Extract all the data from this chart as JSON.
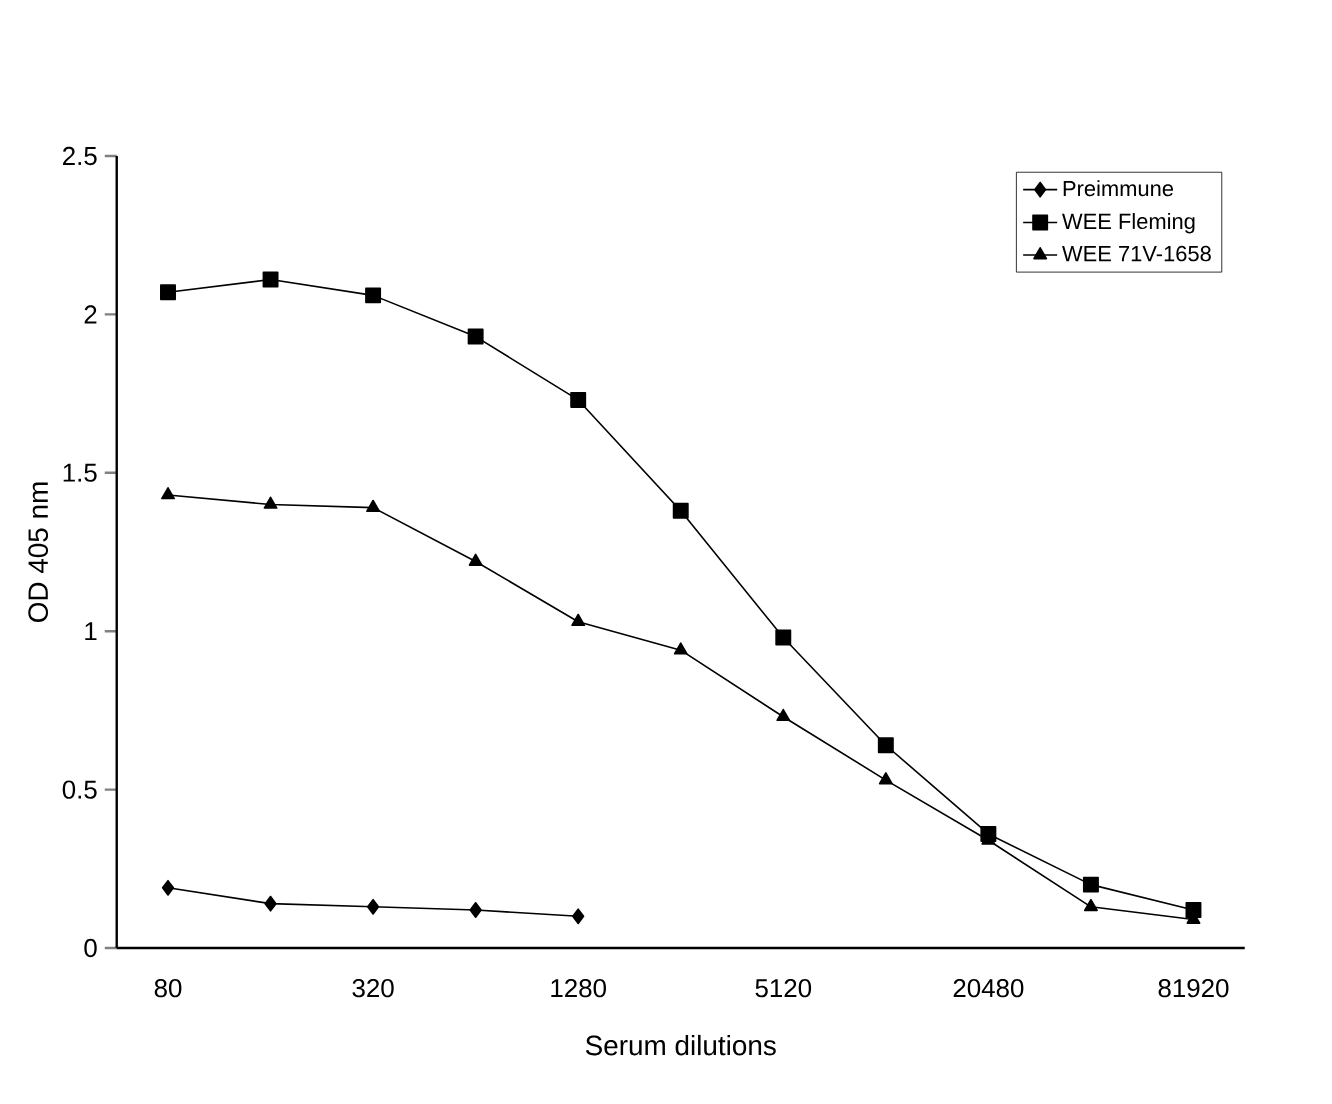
{
  "chart_data": {
    "type": "line",
    "xlabel": "Serum dilutions",
    "ylabel": "OD 405 nm",
    "categories": [
      "80",
      null,
      "320",
      null,
      "1280",
      null,
      "5120",
      null,
      "20480",
      null,
      "81920"
    ],
    "ylim": [
      0,
      2.5
    ],
    "yticks": [
      0,
      0.5,
      1,
      1.5,
      2,
      2.5
    ],
    "legend": "top right",
    "grid": false,
    "line_style": "solid",
    "series": [
      {
        "name": "Preimmune",
        "color": "#000000",
        "marker": "diamond",
        "values": [
          0.19,
          0.14,
          0.13,
          0.12,
          0.1,
          null,
          null,
          null,
          null,
          null,
          null
        ]
      },
      {
        "name": "WEE Fleming",
        "color": "#000000",
        "marker": "square",
        "values": [
          2.07,
          2.11,
          2.06,
          1.93,
          1.73,
          1.38,
          0.98,
          0.64,
          0.36,
          0.2,
          0.12
        ]
      },
      {
        "name": "WEE 71V-1658",
        "color": "#000000",
        "marker": "triangle",
        "values": [
          1.43,
          1.4,
          1.39,
          1.22,
          1.03,
          0.94,
          0.73,
          0.53,
          0.34,
          0.13,
          0.09
        ]
      }
    ]
  }
}
